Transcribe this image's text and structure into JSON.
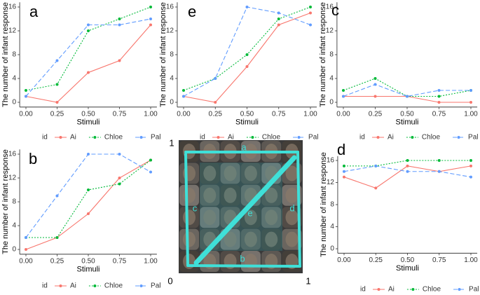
{
  "chart_data": [
    {
      "type": "line",
      "title": "a",
      "xlabel": "Stimuli",
      "ylabel": "The number of infant response",
      "legend_title": "id",
      "x": [
        0,
        0.25,
        0.5,
        0.75,
        1
      ],
      "xlim": [
        -0.05,
        1.05
      ],
      "ylim": [
        -0.8,
        16.8
      ],
      "xticks": [
        {
          "value": 0,
          "label": "0.00"
        },
        0.25,
        {
          "value": 0.5,
          "label": "0.50"
        },
        0.75,
        {
          "value": 1,
          "label": "1.00"
        }
      ],
      "yticks": [
        0,
        4,
        8,
        12,
        16
      ],
      "series": [
        {
          "name": "Ai",
          "color": "#F8766D",
          "dash": "solid",
          "values": [
            1,
            0,
            5,
            7,
            13
          ]
        },
        {
          "name": "Chloe",
          "color": "#00BA38",
          "dash": "dotted",
          "values": [
            2,
            3,
            12,
            14,
            16
          ]
        },
        {
          "name": "Pal",
          "color": "#619CFF",
          "dash": "dashed",
          "values": [
            1,
            7,
            13,
            13,
            14
          ]
        }
      ]
    },
    {
      "type": "line",
      "title": "b",
      "xlabel": "Stimuli",
      "ylabel": "The number of infant response",
      "legend_title": "id",
      "x": [
        0,
        0.25,
        0.5,
        0.75,
        1
      ],
      "xlim": [
        -0.05,
        1.05
      ],
      "ylim": [
        -0.8,
        16.8
      ],
      "xticks": [
        {
          "value": 0,
          "label": "0.00"
        },
        0.25,
        {
          "value": 0.5,
          "label": "0.50"
        },
        0.75,
        {
          "value": 1,
          "label": "1.00"
        }
      ],
      "yticks": [
        0,
        4,
        8,
        12,
        16
      ],
      "series": [
        {
          "name": "Ai",
          "color": "#F8766D",
          "dash": "solid",
          "values": [
            0,
            2,
            6,
            12,
            15
          ]
        },
        {
          "name": "Chloe",
          "color": "#00BA38",
          "dash": "dotted",
          "values": [
            2,
            2,
            10,
            11,
            15
          ]
        },
        {
          "name": "Pal",
          "color": "#619CFF",
          "dash": "dashed",
          "values": [
            2,
            9,
            16,
            16,
            13
          ]
        }
      ]
    },
    {
      "type": "line",
      "title": "c",
      "xlabel": "Stimuli",
      "ylabel": "The number of infant response",
      "legend_title": "id",
      "x": [
        0,
        0.25,
        0.5,
        0.75,
        1
      ],
      "xlim": [
        -0.05,
        1.05
      ],
      "ylim": [
        -0.8,
        16.8
      ],
      "xticks": [
        {
          "value": 0,
          "label": "0.00"
        },
        0.25,
        {
          "value": 0.5,
          "label": "0.50"
        },
        0.75,
        {
          "value": 1,
          "label": "1.00"
        }
      ],
      "yticks": [
        0,
        4,
        8,
        12,
        16
      ],
      "series": [
        {
          "name": "Ai",
          "color": "#F8766D",
          "dash": "solid",
          "values": [
            1,
            1,
            1,
            0,
            0
          ]
        },
        {
          "name": "Chloe",
          "color": "#00BA38",
          "dash": "dotted",
          "values": [
            2,
            4,
            1,
            1,
            2
          ]
        },
        {
          "name": "Pal",
          "color": "#619CFF",
          "dash": "dashed",
          "values": [
            1,
            3,
            1,
            2,
            2
          ]
        }
      ]
    },
    {
      "type": "line",
      "title": "d",
      "xlabel": "Stimuli",
      "ylabel": "The number of infant response",
      "legend_title": "id",
      "x": [
        0,
        0.25,
        0.5,
        0.75,
        1
      ],
      "xlim": [
        -0.05,
        1.05
      ],
      "ylim": [
        -0.8,
        16.8
      ],
      "xticks": [
        {
          "value": 0,
          "label": "0.00"
        },
        0.25,
        {
          "value": 0.5,
          "label": "0.50"
        },
        0.75,
        {
          "value": 1,
          "label": "1.00"
        }
      ],
      "yticks": [
        0,
        4,
        8,
        12,
        16
      ],
      "series": [
        {
          "name": "Ai",
          "color": "#F8766D",
          "dash": "solid",
          "values": [
            13,
            11,
            15,
            14,
            15
          ]
        },
        {
          "name": "Chloe",
          "color": "#00BA38",
          "dash": "dotted",
          "values": [
            15,
            15,
            16,
            16,
            16
          ]
        },
        {
          "name": "Pal",
          "color": "#619CFF",
          "dash": "dashed",
          "values": [
            14,
            15,
            14,
            14,
            13
          ]
        }
      ]
    },
    {
      "type": "line",
      "title": "e",
      "xlabel": "Stimuli",
      "ylabel": "The number of infant response",
      "legend_title": "id",
      "x": [
        0,
        0.25,
        0.5,
        0.75,
        1
      ],
      "xlim": [
        -0.05,
        1.05
      ],
      "ylim": [
        -0.8,
        16.8
      ],
      "xticks": [
        {
          "value": 0,
          "label": "0.00"
        },
        0.25,
        {
          "value": 0.5,
          "label": "0.50"
        },
        0.75,
        {
          "value": 1,
          "label": "1.00"
        }
      ],
      "yticks": [
        0,
        4,
        8,
        12,
        16
      ],
      "series": [
        {
          "name": "Ai",
          "color": "#F8766D",
          "dash": "solid",
          "values": [
            1,
            0,
            6,
            13,
            15
          ]
        },
        {
          "name": "Chloe",
          "color": "#00BA38",
          "dash": "dotted",
          "values": [
            2,
            4,
            8,
            14,
            16
          ]
        },
        {
          "name": "Pal",
          "color": "#619CFF",
          "dash": "dashed",
          "values": [
            1,
            4,
            16,
            15,
            13
          ]
        }
      ]
    }
  ],
  "image_panel": {
    "line_labels": [
      "a",
      "b",
      "c",
      "d",
      "e"
    ],
    "corner_labels": [
      "1",
      "0",
      "1"
    ]
  }
}
